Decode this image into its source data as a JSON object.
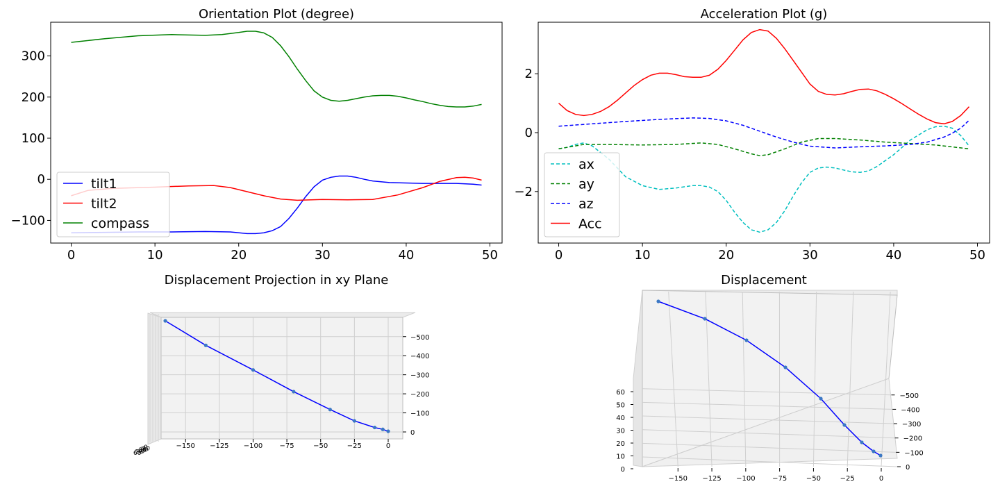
{
  "chart_data": [
    {
      "type": "line",
      "title": "Orientation Plot (degree)",
      "xlim": [
        -2.45,
        51.45
      ],
      "ylim": [
        -155,
        382
      ],
      "xticks": [
        0,
        10,
        20,
        30,
        40,
        50
      ],
      "yticks": [
        -100,
        0,
        100,
        200,
        300
      ],
      "xtick_labels": [
        "0",
        "10",
        "20",
        "30",
        "40",
        "50"
      ],
      "ytick_labels": [
        "−100",
        "0",
        "100",
        "200",
        "300"
      ],
      "legend_position": "lower-left",
      "series": [
        {
          "name": "tilt1",
          "color": "#0000ff",
          "x": [
            0,
            4,
            8,
            12,
            16,
            19,
            21,
            22,
            23,
            24,
            25,
            26,
            27,
            28,
            29,
            30,
            31,
            32,
            33,
            34,
            35,
            36,
            38,
            40,
            42,
            44,
            46,
            48,
            49
          ],
          "y": [
            -130,
            -129,
            -128,
            -128,
            -127,
            -128,
            -132,
            -132,
            -130,
            -125,
            -115,
            -95,
            -70,
            -42,
            -18,
            -2,
            5,
            8,
            8,
            5,
            0,
            -4,
            -8,
            -9,
            -10,
            -10,
            -10,
            -12,
            -14
          ]
        },
        {
          "name": "tilt2",
          "color": "#ff0000",
          "x": [
            0,
            2,
            5,
            10,
            14,
            17,
            19,
            21,
            23,
            25,
            27,
            30,
            33,
            36,
            39,
            42,
            44,
            46,
            47,
            48,
            49
          ],
          "y": [
            -40,
            -27,
            -22,
            -19,
            -16,
            -15,
            -20,
            -30,
            -40,
            -48,
            -51,
            -49,
            -50,
            -49,
            -38,
            -20,
            -5,
            4,
            5,
            3,
            -2
          ]
        },
        {
          "name": "compass",
          "color": "#008000",
          "x": [
            0,
            4,
            8,
            12,
            16,
            18,
            20,
            21,
            22,
            23,
            24,
            25,
            26,
            27,
            28,
            29,
            30,
            31,
            32,
            33,
            34,
            35,
            36,
            37,
            38,
            39,
            40,
            41,
            42,
            43,
            44,
            45,
            46,
            47,
            48,
            49
          ],
          "y": [
            333,
            342,
            349,
            352,
            350,
            352,
            357,
            360,
            360,
            356,
            345,
            325,
            298,
            268,
            240,
            215,
            200,
            192,
            190,
            192,
            196,
            200,
            203,
            204,
            204,
            202,
            198,
            193,
            189,
            184,
            180,
            177,
            176,
            176,
            178,
            182
          ]
        }
      ]
    },
    {
      "type": "line",
      "title": "Acceleration Plot (g)",
      "xlim": [
        -2.45,
        51.45
      ],
      "ylim": [
        -3.75,
        3.75
      ],
      "xticks": [
        0,
        10,
        20,
        30,
        40,
        50
      ],
      "yticks": [
        -2,
        0,
        2
      ],
      "xtick_labels": [
        "0",
        "10",
        "20",
        "30",
        "40",
        "50"
      ],
      "ytick_labels": [
        "−2",
        "0",
        "2"
      ],
      "legend_position": "lower-left",
      "series": [
        {
          "name": "ax",
          "color": "#00bfbf",
          "dash": true,
          "x": [
            0,
            1,
            2,
            3,
            4,
            6,
            8,
            10,
            12,
            14,
            16,
            17,
            18,
            19,
            20,
            21,
            22,
            23,
            24,
            25,
            26,
            27,
            28,
            29,
            30,
            31,
            32,
            33,
            34,
            35,
            36,
            37,
            38,
            40,
            42,
            44,
            45,
            46,
            47,
            48,
            49
          ],
          "y": [
            -0.55,
            -0.5,
            -0.4,
            -0.35,
            -0.45,
            -0.9,
            -1.5,
            -1.8,
            -1.93,
            -1.88,
            -1.8,
            -1.8,
            -1.85,
            -2.0,
            -2.3,
            -2.7,
            -3.05,
            -3.3,
            -3.38,
            -3.3,
            -3.05,
            -2.65,
            -2.15,
            -1.7,
            -1.35,
            -1.2,
            -1.17,
            -1.2,
            -1.27,
            -1.33,
            -1.35,
            -1.3,
            -1.15,
            -0.75,
            -0.25,
            0.1,
            0.2,
            0.22,
            0.15,
            -0.1,
            -0.45
          ]
        },
        {
          "name": "ay",
          "color": "#008000",
          "dash": true,
          "x": [
            0,
            3,
            6,
            10,
            14,
            17,
            19,
            21,
            23,
            24,
            25,
            27,
            29,
            31,
            33,
            36,
            39,
            42,
            45,
            49
          ],
          "y": [
            -0.55,
            -0.4,
            -0.4,
            -0.42,
            -0.4,
            -0.35,
            -0.4,
            -0.55,
            -0.72,
            -0.78,
            -0.75,
            -0.55,
            -0.32,
            -0.2,
            -0.2,
            -0.25,
            -0.32,
            -0.37,
            -0.42,
            -0.55
          ]
        },
        {
          "name": "az",
          "color": "#0000ff",
          "dash": true,
          "x": [
            0,
            4,
            8,
            12,
            16,
            18,
            20,
            22,
            24,
            26,
            28,
            30,
            33,
            36,
            39,
            42,
            44,
            46,
            47,
            48,
            49
          ],
          "y": [
            0.22,
            0.3,
            0.38,
            0.45,
            0.5,
            0.48,
            0.4,
            0.25,
            0.05,
            -0.15,
            -0.32,
            -0.46,
            -0.52,
            -0.48,
            -0.45,
            -0.4,
            -0.32,
            -0.15,
            -0.02,
            0.15,
            0.42
          ]
        },
        {
          "name": "Acc",
          "color": "#ff0000",
          "dash": false,
          "x": [
            0,
            1,
            2,
            3,
            4,
            5,
            6,
            7,
            8,
            9,
            10,
            11,
            12,
            13,
            14,
            15,
            16,
            17,
            18,
            19,
            20,
            21,
            22,
            23,
            24,
            25,
            26,
            27,
            28,
            29,
            30,
            31,
            32,
            33,
            34,
            35,
            36,
            37,
            38,
            39,
            40,
            41,
            42,
            43,
            44,
            45,
            46,
            47,
            48,
            49
          ],
          "y": [
            1.0,
            0.75,
            0.62,
            0.58,
            0.62,
            0.72,
            0.88,
            1.1,
            1.35,
            1.6,
            1.8,
            1.95,
            2.02,
            2.02,
            1.97,
            1.9,
            1.88,
            1.88,
            1.95,
            2.15,
            2.45,
            2.8,
            3.15,
            3.4,
            3.5,
            3.45,
            3.2,
            2.85,
            2.45,
            2.05,
            1.65,
            1.4,
            1.3,
            1.28,
            1.32,
            1.4,
            1.47,
            1.48,
            1.42,
            1.3,
            1.15,
            0.98,
            0.8,
            0.62,
            0.46,
            0.34,
            0.3,
            0.38,
            0.58,
            0.88
          ]
        }
      ]
    },
    {
      "type": "line3d",
      "title": "Displacement Projection in xy Plane",
      "xticks": [
        -150,
        -125,
        -100,
        -75,
        -50,
        -25,
        0
      ],
      "xtick_labels": [
        "−150",
        "−125",
        "−100",
        "−75",
        "−50",
        "−25",
        "0"
      ],
      "yticks": [
        0,
        100,
        200,
        300,
        400,
        500
      ],
      "ytick_labels": [
        "0",
        "−100",
        "−200",
        "−300",
        "−400",
        "−500"
      ],
      "ztick_labels": [
        "60",
        "50",
        "40",
        "30",
        "20",
        "10",
        "0"
      ],
      "points": [
        {
          "x": 0,
          "y": 0
        },
        {
          "x": -4,
          "y": 10
        },
        {
          "x": -10,
          "y": 20
        },
        {
          "x": -25,
          "y": 55
        },
        {
          "x": -43,
          "y": 115
        },
        {
          "x": -70,
          "y": 210
        },
        {
          "x": -100,
          "y": 325
        },
        {
          "x": -135,
          "y": 455
        },
        {
          "x": -165,
          "y": 585
        }
      ]
    },
    {
      "type": "line3d",
      "title": "Displacement",
      "xticks": [
        -150,
        -125,
        -100,
        -75,
        -50,
        -25,
        0
      ],
      "xtick_labels": [
        "−150",
        "−125",
        "−100",
        "−75",
        "−50",
        "−25",
        "0"
      ],
      "yticks": [
        0,
        100,
        200,
        300,
        400,
        500
      ],
      "ytick_labels": [
        "0",
        "−100",
        "−200",
        "−300",
        "−400",
        "−500"
      ],
      "zticks": [
        0,
        10,
        20,
        30,
        40,
        50,
        60
      ],
      "ztick_labels": [
        "0",
        "10",
        "20",
        "30",
        "40",
        "50",
        "60"
      ],
      "points": [
        {
          "x": 0,
          "y": 0
        },
        {
          "x": -4,
          "y": 15
        },
        {
          "x": -10,
          "y": 40
        },
        {
          "x": -25,
          "y": 110
        },
        {
          "x": -45,
          "y": 210
        },
        {
          "x": -70,
          "y": 320
        },
        {
          "x": -100,
          "y": 440
        },
        {
          "x": -130,
          "y": 555
        },
        {
          "x": -165,
          "y": 670
        }
      ]
    }
  ]
}
